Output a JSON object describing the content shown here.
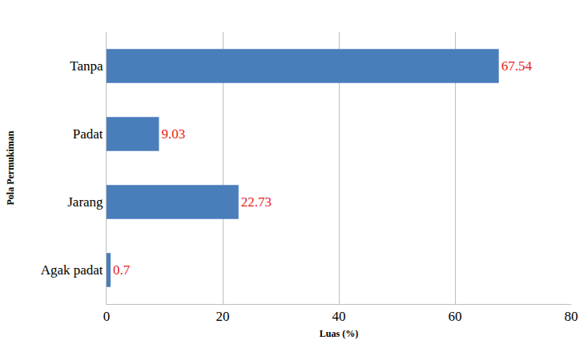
{
  "chart_data": {
    "type": "bar",
    "orientation": "horizontal",
    "categories": [
      "Tanpa",
      "Padat",
      "Jarang",
      "Agak padat"
    ],
    "values": [
      67.54,
      9.03,
      22.73,
      0.7
    ],
    "color": "#4a7ebb",
    "x_label": "Luas (%)",
    "y_label": "Pola Permukiman",
    "xlim": [
      0,
      80
    ],
    "xticks": [
      0,
      20,
      40,
      60,
      80
    ],
    "grid": true,
    "data_labels": true
  }
}
